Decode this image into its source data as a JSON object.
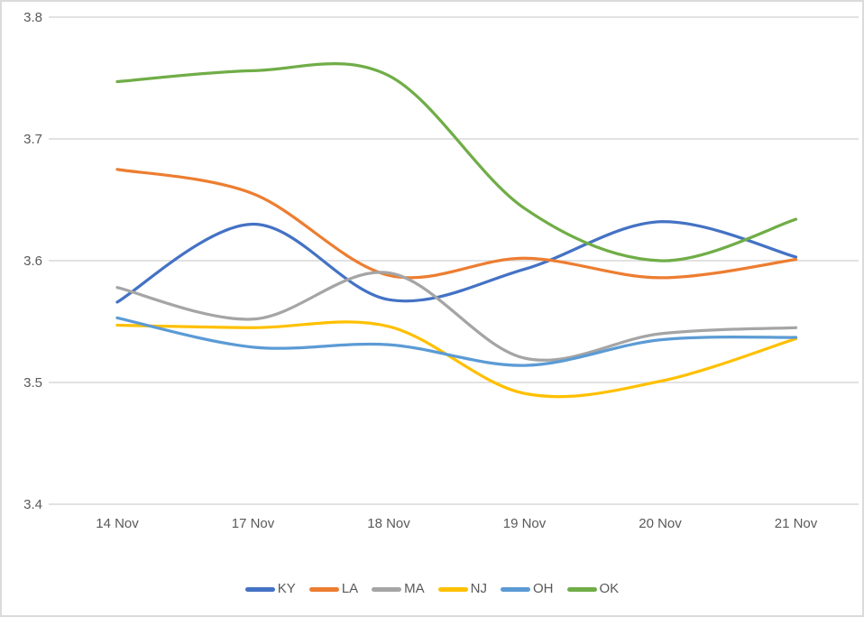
{
  "chart_data": {
    "type": "line",
    "smooth": true,
    "title": "",
    "xlabel": "",
    "ylabel": "",
    "categories": [
      "14 Nov",
      "17 Nov",
      "18 Nov",
      "19 Nov",
      "20 Nov",
      "21 Nov"
    ],
    "series": [
      {
        "name": "KY",
        "color": "#4472C4",
        "values": [
          3.566,
          3.63,
          3.568,
          3.593,
          3.632,
          3.603
        ]
      },
      {
        "name": "LA",
        "color": "#ED7D31",
        "values": [
          3.675,
          3.655,
          3.588,
          3.602,
          3.586,
          3.601
        ]
      },
      {
        "name": "MA",
        "color": "#A5A5A5",
        "values": [
          3.578,
          3.552,
          3.59,
          3.52,
          3.54,
          3.545
        ]
      },
      {
        "name": "NJ",
        "color": "#FFC000",
        "values": [
          3.547,
          3.545,
          3.546,
          3.491,
          3.501,
          3.536
        ]
      },
      {
        "name": "OH",
        "color": "#5B9BD5",
        "values": [
          3.553,
          3.529,
          3.531,
          3.514,
          3.535,
          3.537
        ]
      },
      {
        "name": "OK",
        "color": "#70AD47",
        "values": [
          3.747,
          3.756,
          3.752,
          3.643,
          3.6,
          3.634
        ]
      }
    ],
    "y_axis": {
      "min": 3.4,
      "max": 3.8,
      "tick_step": 0.1,
      "tick_labels": [
        "3.8",
        "3.7",
        "3.6",
        "3.5",
        "3.4"
      ]
    },
    "grid": true,
    "legend_position": "bottom"
  },
  "style": {
    "grid_color": "#D9D9D9",
    "label_color": "#595959",
    "background_color": "#FFFFFF",
    "border_color": "#DBDBDB",
    "line_width": 3.25
  }
}
